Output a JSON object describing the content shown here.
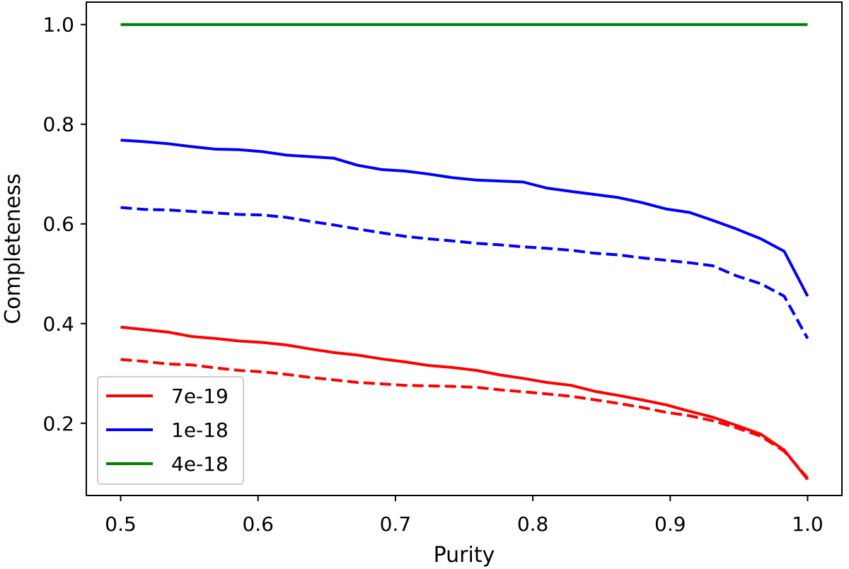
{
  "chart_data": {
    "type": "line",
    "title": "",
    "xlabel": "Purity",
    "ylabel": "Completeness",
    "xlim": [
      0.475,
      1.025
    ],
    "ylim": [
      0.055,
      1.045
    ],
    "xticks": [
      0.5,
      0.6,
      0.7,
      0.8,
      0.9,
      1.0
    ],
    "xtick_labels": [
      "0.5",
      "0.6",
      "0.7",
      "0.8",
      "0.9",
      "1.0"
    ],
    "yticks": [
      0.2,
      0.4,
      0.6,
      0.8,
      1.0
    ],
    "ytick_labels": [
      "0.2",
      "0.4",
      "0.6",
      "0.8",
      "1.0"
    ],
    "grid": false,
    "legend_position": "lower-left",
    "series": [
      {
        "name": "7e-19",
        "color": "#ff0000",
        "style": "solid",
        "in_legend": true,
        "x": [
          0.5,
          0.517,
          0.534,
          0.552,
          0.569,
          0.586,
          0.603,
          0.621,
          0.638,
          0.655,
          0.672,
          0.69,
          0.707,
          0.724,
          0.741,
          0.759,
          0.776,
          0.793,
          0.81,
          0.828,
          0.845,
          0.862,
          0.879,
          0.897,
          0.914,
          0.931,
          0.948,
          0.966,
          0.983,
          1.0
        ],
        "y": [
          0.393,
          0.388,
          0.383,
          0.374,
          0.37,
          0.365,
          0.362,
          0.357,
          0.349,
          0.342,
          0.337,
          0.329,
          0.323,
          0.316,
          0.312,
          0.306,
          0.297,
          0.29,
          0.282,
          0.276,
          0.264,
          0.256,
          0.247,
          0.237,
          0.224,
          0.212,
          0.196,
          0.178,
          0.146,
          0.087
        ]
      },
      {
        "name": "7e-19 (dashed)",
        "color": "#ff0000",
        "style": "dashed",
        "in_legend": false,
        "x": [
          0.5,
          0.517,
          0.534,
          0.552,
          0.569,
          0.586,
          0.603,
          0.621,
          0.638,
          0.655,
          0.672,
          0.69,
          0.707,
          0.724,
          0.741,
          0.759,
          0.776,
          0.793,
          0.81,
          0.828,
          0.845,
          0.862,
          0.879,
          0.897,
          0.914,
          0.931,
          0.948,
          0.966,
          0.983,
          1.0
        ],
        "y": [
          0.328,
          0.324,
          0.319,
          0.317,
          0.311,
          0.306,
          0.303,
          0.298,
          0.292,
          0.287,
          0.282,
          0.279,
          0.276,
          0.275,
          0.274,
          0.272,
          0.267,
          0.263,
          0.259,
          0.254,
          0.247,
          0.24,
          0.232,
          0.222,
          0.215,
          0.205,
          0.191,
          0.174,
          0.144,
          0.09
        ]
      },
      {
        "name": "1e-18",
        "color": "#0000ff",
        "style": "solid",
        "in_legend": true,
        "x": [
          0.5,
          0.517,
          0.534,
          0.552,
          0.569,
          0.586,
          0.603,
          0.621,
          0.638,
          0.655,
          0.672,
          0.69,
          0.707,
          0.724,
          0.741,
          0.759,
          0.776,
          0.793,
          0.81,
          0.828,
          0.845,
          0.862,
          0.879,
          0.897,
          0.914,
          0.931,
          0.948,
          0.966,
          0.983,
          1.0
        ],
        "y": [
          0.768,
          0.765,
          0.761,
          0.755,
          0.75,
          0.749,
          0.745,
          0.738,
          0.735,
          0.732,
          0.718,
          0.709,
          0.706,
          0.7,
          0.693,
          0.688,
          0.686,
          0.684,
          0.672,
          0.665,
          0.659,
          0.653,
          0.643,
          0.63,
          0.623,
          0.607,
          0.59,
          0.57,
          0.545,
          0.455
        ]
      },
      {
        "name": "1e-18 (dashed)",
        "color": "#0000ff",
        "style": "dashed",
        "in_legend": false,
        "x": [
          0.5,
          0.517,
          0.534,
          0.552,
          0.569,
          0.586,
          0.603,
          0.621,
          0.638,
          0.655,
          0.672,
          0.69,
          0.707,
          0.724,
          0.741,
          0.759,
          0.776,
          0.793,
          0.81,
          0.828,
          0.845,
          0.862,
          0.879,
          0.897,
          0.914,
          0.931,
          0.948,
          0.966,
          0.983,
          1.0
        ],
        "y": [
          0.633,
          0.629,
          0.628,
          0.625,
          0.622,
          0.619,
          0.618,
          0.613,
          0.605,
          0.598,
          0.59,
          0.582,
          0.575,
          0.57,
          0.566,
          0.561,
          0.558,
          0.554,
          0.551,
          0.547,
          0.541,
          0.538,
          0.532,
          0.527,
          0.522,
          0.516,
          0.496,
          0.48,
          0.455,
          0.37
        ]
      },
      {
        "name": "4e-18",
        "color": "#008000",
        "style": "solid",
        "in_legend": true,
        "x": [
          0.5,
          1.0
        ],
        "y": [
          1.0,
          1.0
        ]
      }
    ]
  }
}
